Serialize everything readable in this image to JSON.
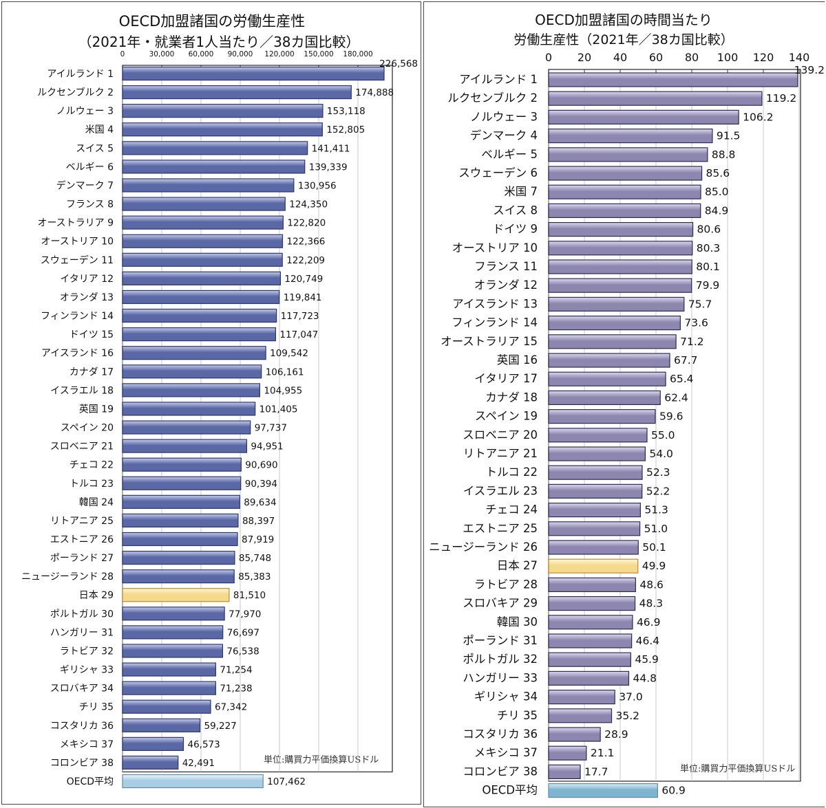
{
  "chart_data": [
    {
      "type": "bar",
      "orientation": "horizontal",
      "title_line1": "OECD加盟諸国の労働生産性",
      "title_line2": "（2021年・就業者1人当たり／38カ国比較）",
      "unit_note": "単位:購買力平価換算USドル",
      "xlim": [
        0,
        200000
      ],
      "ticks": [
        "0",
        "30,000",
        "60,000",
        "90,000",
        "120,000",
        "150,000",
        "180,000"
      ],
      "tick_values": [
        0,
        30000,
        60000,
        90000,
        120000,
        150000,
        180000
      ],
      "highlight_color": "#f5d98c",
      "bar_color": "#5b68a6",
      "average_color": "#bcd7e8",
      "categories": [
        "アイルランド",
        "ルクセンブルク",
        "ノルウェー",
        "米国",
        "スイス",
        "ベルギー",
        "デンマーク",
        "フランス",
        "オーストラリア",
        "オーストリア",
        "スウェーデン",
        "イタリア",
        "オランダ",
        "フィンランド",
        "ドイツ",
        "アイスランド",
        "カナダ",
        "イスラエル",
        "英国",
        "スペイン",
        "スロベニア",
        "チェコ",
        "トルコ",
        "韓国",
        "リトアニア",
        "エストニア",
        "ポーランド",
        "ニュージーランド",
        "日本",
        "ポルトガル",
        "ハンガリー",
        "ラトビア",
        "ギリシャ",
        "スロバキア",
        "チリ",
        "コスタリカ",
        "メキシコ",
        "コロンビア",
        "OECD平均"
      ],
      "ranks": [
        "1",
        "2",
        "3",
        "4",
        "5",
        "6",
        "7",
        "8",
        "9",
        "10",
        "11",
        "12",
        "13",
        "14",
        "15",
        "16",
        "17",
        "18",
        "19",
        "20",
        "21",
        "22",
        "23",
        "24",
        "25",
        "26",
        "27",
        "28",
        "29",
        "30",
        "31",
        "32",
        "33",
        "34",
        "35",
        "36",
        "37",
        "38",
        ""
      ],
      "values": [
        226568,
        174888,
        153118,
        152805,
        141411,
        139339,
        130956,
        124350,
        122820,
        122366,
        122209,
        120749,
        119841,
        117723,
        117047,
        109542,
        106161,
        104955,
        101405,
        97737,
        94951,
        90690,
        90394,
        89634,
        88397,
        87919,
        85748,
        85383,
        81510,
        77970,
        76697,
        76538,
        71254,
        71238,
        67342,
        59227,
        46573,
        42491,
        107462
      ],
      "value_labels": [
        "226,568",
        "174,888",
        "153,118",
        "152,805",
        "141,411",
        "139,339",
        "130,956",
        "124,350",
        "122,820",
        "122,366",
        "122,209",
        "120,749",
        "119,841",
        "117,723",
        "117,047",
        "109,542",
        "106,161",
        "104,955",
        "101,405",
        "97,737",
        "94,951",
        "90,690",
        "90,394",
        "89,634",
        "88,397",
        "87,919",
        "85,748",
        "85,383",
        "81,510",
        "77,970",
        "76,697",
        "76,538",
        "71,254",
        "71,238",
        "67,342",
        "59,227",
        "46,573",
        "42,491",
        "107,462"
      ],
      "highlight_index": 28
    },
    {
      "type": "bar",
      "orientation": "horizontal",
      "title_line1": "OECD加盟諸国の時間当たり",
      "title_line2": "労働生産性（2021年／38カ国比較）",
      "unit_note": "単位:購買力平価換算USドル",
      "xlim": [
        0,
        140
      ],
      "ticks": [
        "0",
        "20",
        "40",
        "60",
        "80",
        "100",
        "120",
        "140"
      ],
      "tick_values": [
        0,
        20,
        40,
        60,
        80,
        100,
        120,
        140
      ],
      "highlight_color": "#f5d98c",
      "bar_color": "#8d87af",
      "average_color": "#8fbfd6",
      "categories": [
        "アイルランド",
        "ルクセンブルク",
        "ノルウェー",
        "デンマーク",
        "ベルギー",
        "スウェーデン",
        "米国",
        "スイス",
        "ドイツ",
        "オーストリア",
        "フランス",
        "オランダ",
        "アイスランド",
        "フィンランド",
        "オーストラリア",
        "英国",
        "イタリア",
        "カナダ",
        "スペイン",
        "スロベニア",
        "リトアニア",
        "トルコ",
        "イスラエル",
        "チェコ",
        "エストニア",
        "ニュージーランド",
        "日本",
        "ラトビア",
        "スロバキア",
        "韓国",
        "ポーランド",
        "ポルトガル",
        "ハンガリー",
        "ギリシャ",
        "チリ",
        "コスタリカ",
        "メキシコ",
        "コロンビア",
        "OECD平均"
      ],
      "ranks": [
        "1",
        "2",
        "3",
        "4",
        "5",
        "6",
        "7",
        "8",
        "9",
        "10",
        "11",
        "12",
        "13",
        "14",
        "15",
        "16",
        "17",
        "18",
        "19",
        "20",
        "21",
        "22",
        "23",
        "24",
        "25",
        "26",
        "27",
        "28",
        "29",
        "30",
        "31",
        "32",
        "33",
        "34",
        "35",
        "36",
        "37",
        "38",
        ""
      ],
      "values": [
        139.2,
        119.2,
        106.2,
        91.5,
        88.8,
        85.6,
        85.0,
        84.9,
        80.6,
        80.3,
        80.1,
        79.9,
        75.7,
        73.6,
        71.2,
        67.7,
        65.4,
        62.4,
        59.6,
        55.0,
        54.0,
        52.3,
        52.2,
        51.3,
        51.0,
        50.1,
        49.9,
        48.6,
        48.3,
        46.9,
        46.4,
        45.9,
        44.8,
        37.0,
        35.2,
        28.9,
        21.1,
        17.7,
        60.9
      ],
      "value_labels": [
        "139.2",
        "119.2",
        "106.2",
        "91.5",
        "88.8",
        "85.6",
        "85.0",
        "84.9",
        "80.6",
        "80.3",
        "80.1",
        "79.9",
        "75.7",
        "73.6",
        "71.2",
        "67.7",
        "65.4",
        "62.4",
        "59.6",
        "55.0",
        "54.0",
        "52.3",
        "52.2",
        "51.3",
        "51.0",
        "50.1",
        "49.9",
        "48.6",
        "48.3",
        "46.9",
        "46.4",
        "45.9",
        "44.8",
        "37.0",
        "35.2",
        "28.9",
        "21.1",
        "17.7",
        "60.9"
      ],
      "highlight_index": 26
    }
  ]
}
